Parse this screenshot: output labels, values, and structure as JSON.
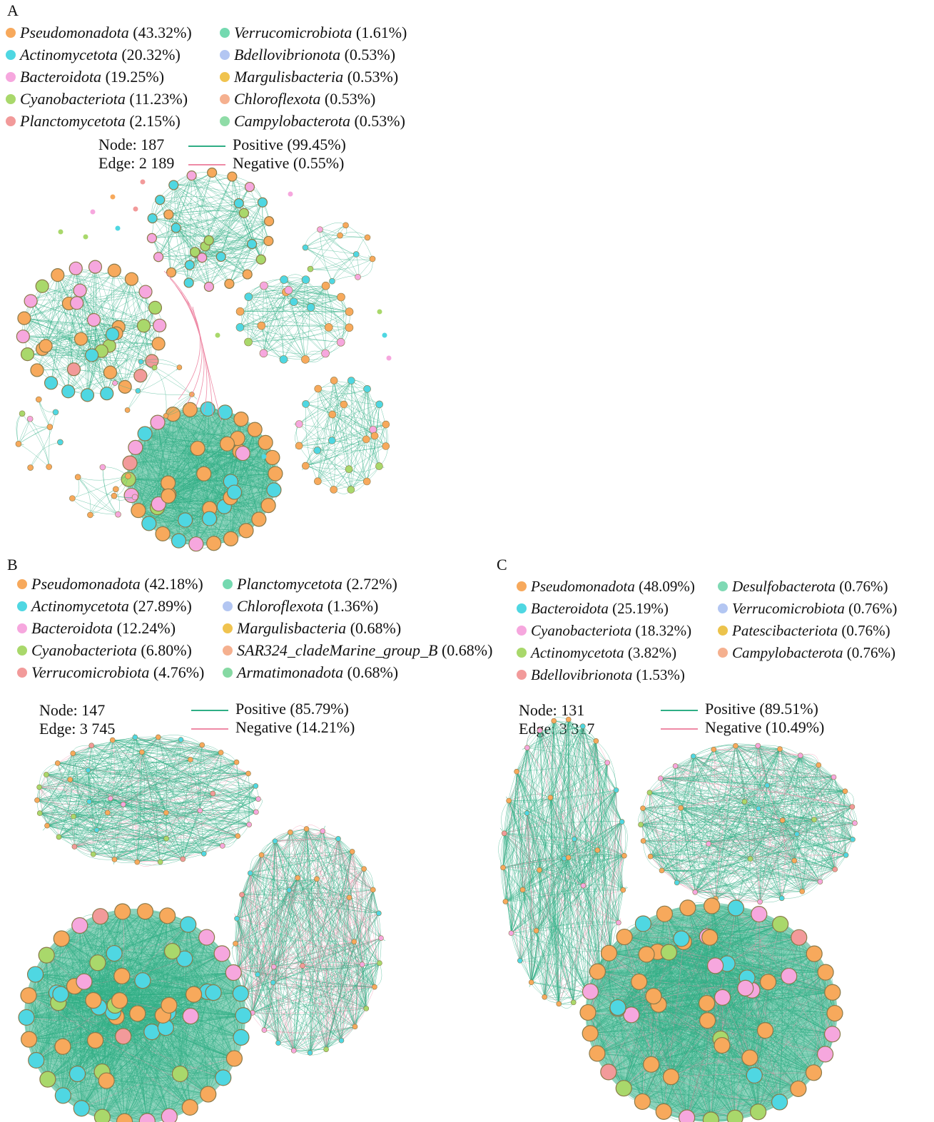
{
  "colors": {
    "Pseudomonadota": "#f7a95c",
    "Actinomycetota": "#4fd7e2",
    "Bacteroidota": "#f6a7de",
    "Cyanobacteriota": "#a9d86b",
    "Planctomycetota": "#f29a9a",
    "Verrucomicrobiota": "#74d9b0",
    "Bdellovibrionota": "#b3c6f2",
    "Margulisbacteria": "#f0c34f",
    "Chloroflexota": "#f5b08f",
    "Campylobacterota": "#8fdca7",
    "SAR324": "#f5b08f",
    "Armatimonadota": "#86d9a3",
    "Desulfobacterota": "#7fd9b4",
    "Patescibacteriota": "#ecc34c",
    "positive": "#2fae85",
    "negative": "#ee8aa6"
  },
  "panels": [
    {
      "letter": "A",
      "legend": [
        {
          "taxon": "Pseudomonadota",
          "pct": "(43.32%)",
          "color": "#f7a95c"
        },
        {
          "taxon": "Actinomycetota",
          "pct": "(20.32%)",
          "color": "#4fd7e2"
        },
        {
          "taxon": "Bacteroidota",
          "pct": "(19.25%)",
          "color": "#f6a7de"
        },
        {
          "taxon": "Cyanobacteriota",
          "pct": "(11.23%)",
          "color": "#a9d86b"
        },
        {
          "taxon": "Planctomycetota",
          "pct": "(2.15%)",
          "color": "#f29a9a"
        },
        {
          "taxon": "Verrucomicrobiota",
          "pct": "(1.61%)",
          "color": "#74d9b0"
        },
        {
          "taxon": "Bdellovibrionota",
          "pct": "(0.53%)",
          "color": "#b3c6f2"
        },
        {
          "taxon": "Margulisbacteria",
          "pct": "(0.53%)",
          "color": "#f0c34f"
        },
        {
          "taxon": "Chloroflexota",
          "pct": "(0.53%)",
          "color": "#f5b08f"
        },
        {
          "taxon": "Campylobacterota",
          "pct": "(0.53%)",
          "color": "#8fdca7"
        }
      ],
      "node": "Node: 187",
      "edge": "Edge: 2 189",
      "positive": "Positive (99.45%)",
      "negative": "Negative (0.55%)"
    },
    {
      "letter": "B",
      "legend": [
        {
          "taxon": "Pseudomonadota",
          "pct": "(42.18%)",
          "color": "#f7a95c"
        },
        {
          "taxon": "Actinomycetota",
          "pct": "(27.89%)",
          "color": "#4fd7e2"
        },
        {
          "taxon": "Bacteroidota",
          "pct": "(12.24%)",
          "color": "#f6a7de"
        },
        {
          "taxon": "Cyanobacteriota",
          "pct": "(6.80%)",
          "color": "#a9d86b"
        },
        {
          "taxon": "Verrucomicrobiota",
          "pct": "(4.76%)",
          "color": "#f29a9a"
        },
        {
          "taxon": "Planctomycetota",
          "pct": "(2.72%)",
          "color": "#74d9b0"
        },
        {
          "taxon": "Chloroflexota",
          "pct": "(1.36%)",
          "color": "#b3c6f2"
        },
        {
          "taxon": "Margulisbacteria",
          "pct": "(0.68%)",
          "color": "#f0c34f"
        },
        {
          "taxon": "SAR324_cladeMarine_group_B",
          "pct": "(0.68%)",
          "color": "#f5b08f"
        },
        {
          "taxon": "Armatimonadota",
          "pct": "(0.68%)",
          "color": "#86d9a3"
        }
      ],
      "node": "Node: 147",
      "edge": "Edge: 3 745",
      "positive": "Positive (85.79%)",
      "negative": "Negative (14.21%)"
    },
    {
      "letter": "C",
      "legend": [
        {
          "taxon": "Pseudomonadota",
          "pct": "(48.09%)",
          "color": "#f7a95c"
        },
        {
          "taxon": "Bacteroidota",
          "pct": "(25.19%)",
          "color": "#4fd7e2"
        },
        {
          "taxon": "Cyanobacteriota",
          "pct": "(18.32%)",
          "color": "#f6a7de"
        },
        {
          "taxon": "Actinomycetota",
          "pct": "(3.82%)",
          "color": "#a9d86b"
        },
        {
          "taxon": "Bdellovibrionota",
          "pct": "(1.53%)",
          "color": "#f29a9a"
        },
        {
          "taxon": "Desulfobacterota",
          "pct": "(0.76%)",
          "color": "#7fd9b4"
        },
        {
          "taxon": "Verrucomicrobiota",
          "pct": "(0.76%)",
          "color": "#b3c6f2"
        },
        {
          "taxon": "Patescibacteriota",
          "pct": "(0.76%)",
          "color": "#ecc34c"
        },
        {
          "taxon": "Campylobacterota",
          "pct": "(0.76%)",
          "color": "#f5b08f"
        }
      ],
      "node": "Node: 131",
      "edge": "Edge: 3 317",
      "positive": "Positive (89.51%)",
      "negative": "Negative (10.49%)"
    }
  ]
}
